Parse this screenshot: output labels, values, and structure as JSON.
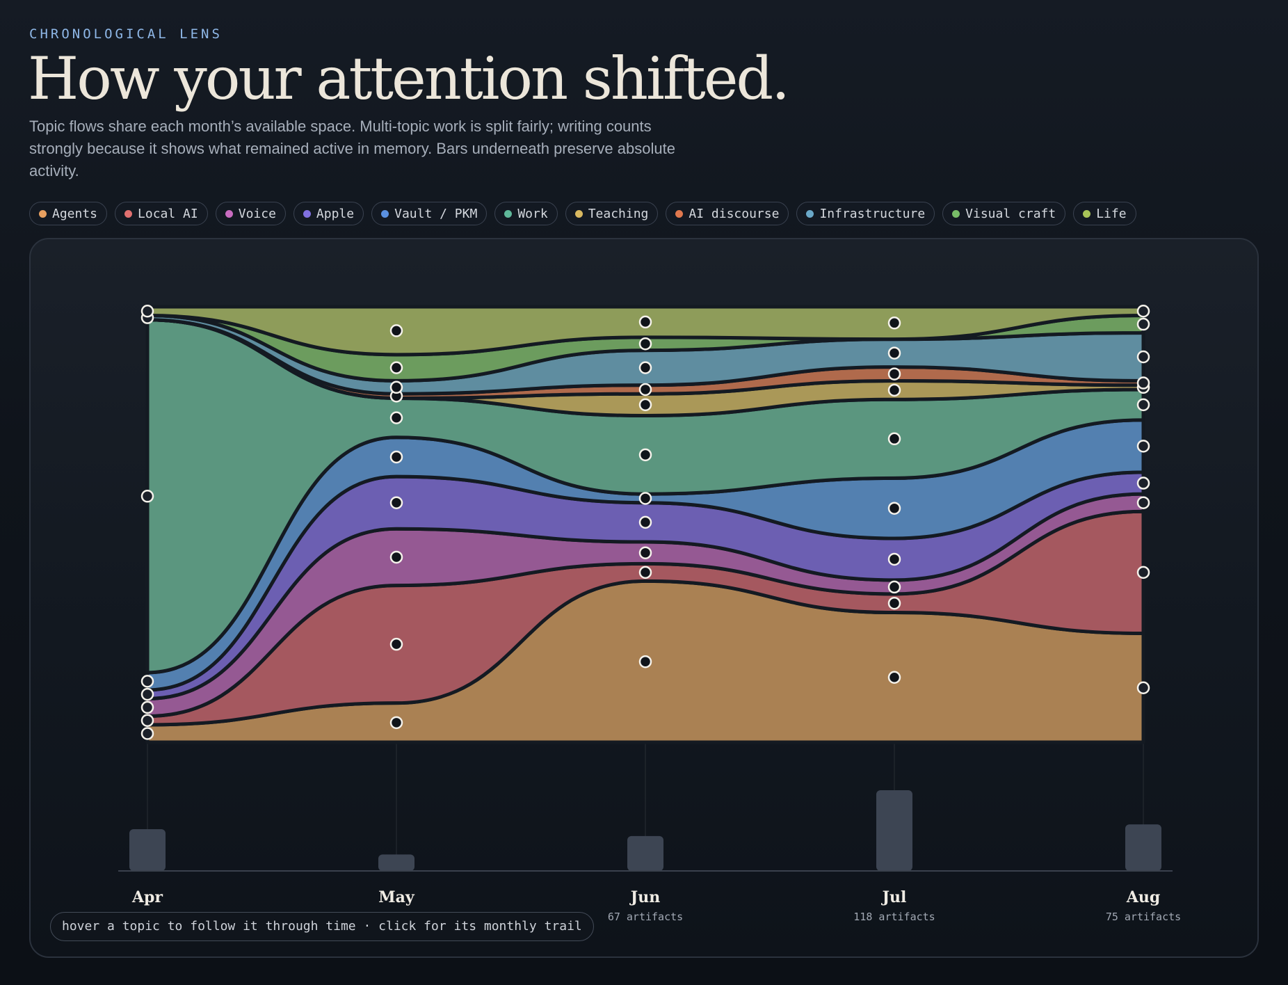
{
  "header": {
    "eyebrow": "CHRONOLOGICAL LENS",
    "title": "How your attention shifted.",
    "subtitle": "Topic flows share each month’s available space. Multi-topic work is split fairly; writing counts strongly because it shows what remained active in memory. Bars underneath preserve absolute activity."
  },
  "legend": [
    {
      "label": "Agents",
      "color": "#e8a060"
    },
    {
      "label": "Local AI",
      "color": "#e07070"
    },
    {
      "label": "Voice",
      "color": "#c86cc0"
    },
    {
      "label": "Apple",
      "color": "#8070e0"
    },
    {
      "label": "Vault / PKM",
      "color": "#5a90e0"
    },
    {
      "label": "Work",
      "color": "#5fb89a"
    },
    {
      "label": "Teaching",
      "color": "#d8b860"
    },
    {
      "label": "AI discourse",
      "color": "#e0784e"
    },
    {
      "label": "Infrastructure",
      "color": "#6aa8c8"
    },
    {
      "label": "Visual craft",
      "color": "#78bc68"
    },
    {
      "label": "Life",
      "color": "#a8c458"
    }
  ],
  "hint": "hover a topic to follow it through time · click for its monthly trail",
  "chart_data": {
    "type": "area",
    "stacked": "normalized",
    "months": [
      {
        "label": "Apr",
        "artifacts": ""
      },
      {
        "label": "May",
        "artifacts": ""
      },
      {
        "label": "Jun",
        "artifacts": "67 artifacts"
      },
      {
        "label": "Jul",
        "artifacts": "118 artifacts"
      },
      {
        "label": "Aug",
        "artifacts": "75 artifacts"
      }
    ],
    "activity": [
      61,
      24,
      51,
      118,
      68
    ],
    "series": [
      {
        "name": "Agents",
        "fill": "#aa8153",
        "values": [
          0.04,
          0.09,
          0.37,
          0.28,
          0.25
        ]
      },
      {
        "name": "Local AI",
        "fill": "#a5585f",
        "values": [
          0.02,
          0.27,
          0.04,
          0.04,
          0.28
        ]
      },
      {
        "name": "Voice",
        "fill": "#955993",
        "values": [
          0.04,
          0.13,
          0.05,
          0.03,
          0.04
        ]
      },
      {
        "name": "Apple",
        "fill": "#6c5fb2",
        "values": [
          0.02,
          0.12,
          0.09,
          0.09,
          0.05
        ]
      },
      {
        "name": "Vault / PKM",
        "fill": "#5380b0",
        "values": [
          0.04,
          0.09,
          0.02,
          0.13,
          0.12
        ]
      },
      {
        "name": "Work",
        "fill": "#5b967f",
        "values": [
          0.81,
          0.09,
          0.18,
          0.17,
          0.07
        ]
      },
      {
        "name": "Teaching",
        "fill": "#aa9858",
        "values": [
          0.0,
          0.0,
          0.05,
          0.04,
          0.01
        ]
      },
      {
        "name": "AI discourse",
        "fill": "#b06a4c",
        "values": [
          0.0,
          0.01,
          0.02,
          0.03,
          0.01
        ]
      },
      {
        "name": "Infrastructure",
        "fill": "#5f8da0",
        "values": [
          0.01,
          0.03,
          0.08,
          0.06,
          0.11
        ]
      },
      {
        "name": "Visual craft",
        "fill": "#6c9c5e",
        "values": [
          0.0,
          0.06,
          0.03,
          0.0,
          0.04
        ]
      },
      {
        "name": "Life",
        "fill": "#8e9c5a",
        "values": [
          0.02,
          0.11,
          0.07,
          0.07,
          0.02
        ]
      }
    ]
  }
}
